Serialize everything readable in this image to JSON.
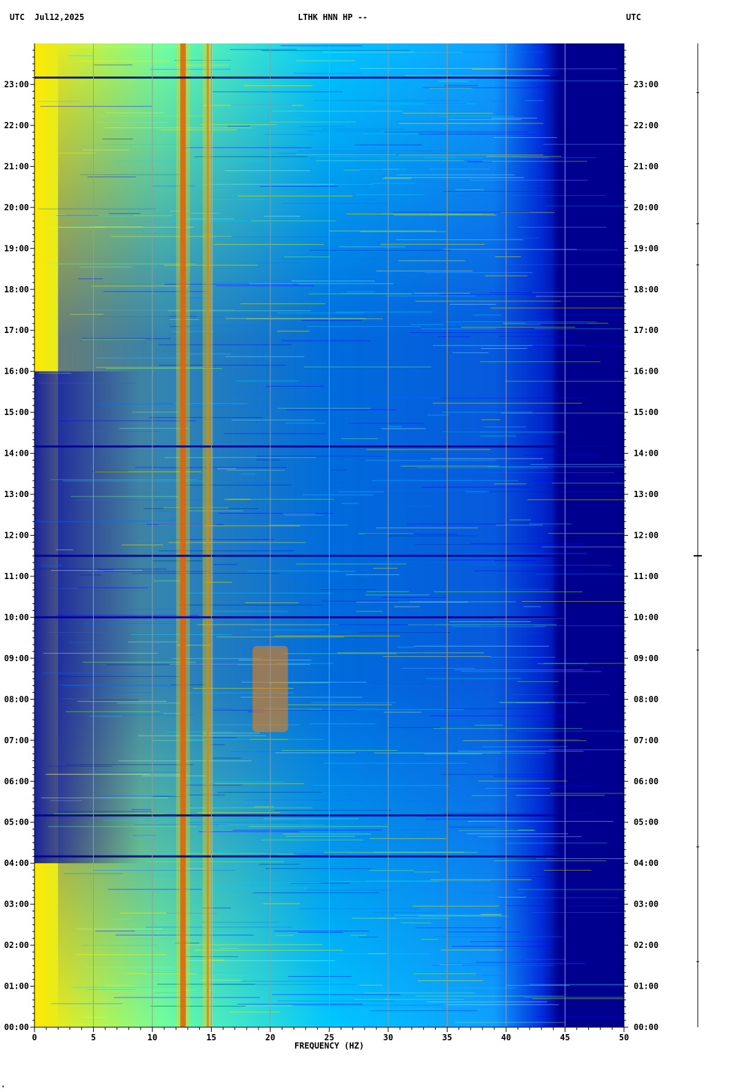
{
  "header": {
    "left_tz": "UTC",
    "date": "Jul12,2025",
    "station": "LTHK HNN HP --",
    "right_tz": "UTC"
  },
  "footer_marker": "*",
  "chart_data": {
    "type": "heatmap",
    "title": "LTHK HNN HP --",
    "xlabel": "FREQUENCY (HZ)",
    "ylabel": "",
    "xlim": [
      0,
      50
    ],
    "ylim_hours": [
      0,
      24
    ],
    "x_ticks": [
      0,
      5,
      10,
      15,
      20,
      25,
      30,
      35,
      40,
      45,
      50
    ],
    "x_minor_step": 1,
    "y_ticks": [
      "00:00",
      "01:00",
      "02:00",
      "03:00",
      "04:00",
      "05:00",
      "06:00",
      "07:00",
      "08:00",
      "09:00",
      "10:00",
      "11:00",
      "12:00",
      "13:00",
      "14:00",
      "15:00",
      "16:00",
      "17:00",
      "18:00",
      "19:00",
      "20:00",
      "21:00",
      "22:00",
      "23:00"
    ],
    "y_minor_per_hour": 6,
    "grid": true,
    "colormap": [
      "#00008f",
      "#0000ff",
      "#0070ff",
      "#00d8ff",
      "#7fff80",
      "#ffff00",
      "#ff8000",
      "#d00000"
    ],
    "energy_cutoff_hz": 44,
    "persistent_lines_hz": [
      12.6,
      14.7
    ],
    "band_energy_hz": [
      19.5,
      20.5
    ],
    "quiet_minutes_utc": [
      "23:10",
      "14:10",
      "11:30",
      "10:00",
      "05:10",
      "04:10"
    ],
    "seismic_trace_event_utc": "11:30"
  }
}
